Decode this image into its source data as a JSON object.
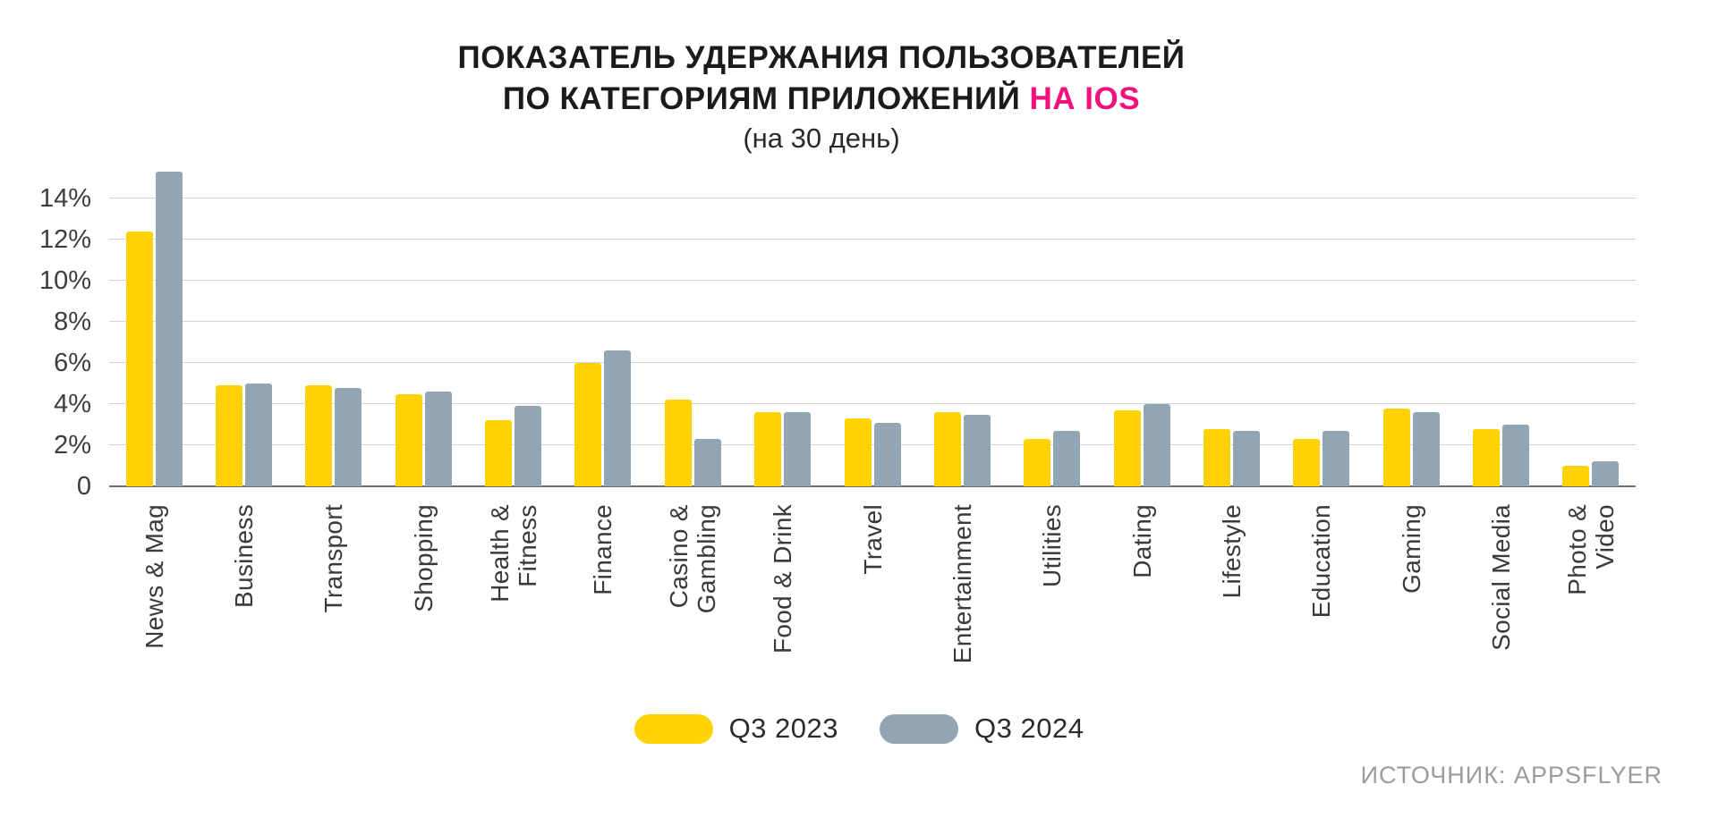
{
  "title": {
    "line1": "ПОКАЗАТЕЛЬ УДЕРЖАНИЯ ПОЛЬЗОВАТЕЛЕЙ",
    "line2_prefix": "ПО КАТЕГОРИЯМ ПРИЛОЖЕНИЙ ",
    "line2_highlight": "НА IOS",
    "subtitle": "(на 30 день)"
  },
  "colors": {
    "highlight": "#F4117B",
    "q3_2023": "#FFD303",
    "q3_2024": "#92A5B2",
    "gridline": "#C9D6E0",
    "baseline": "#6F6F6F"
  },
  "legend": [
    {
      "label": "Q3 2023",
      "color": "#FFD303"
    },
    {
      "label": "Q3 2024",
      "color": "#92A5B2"
    }
  ],
  "source": "ИСТОЧНИК: APPSFLYER",
  "chart_data": {
    "type": "bar",
    "title": "ПОКАЗАТЕЛЬ УДЕРЖАНИЯ ПОЛЬЗОВАТЕЛЕЙ ПО КАТЕГОРИЯМ ПРИЛОЖЕНИЙ НА IOS (на 30 день)",
    "categories": [
      [
        "News & Mag"
      ],
      [
        "Business"
      ],
      [
        "Transport"
      ],
      [
        "Shopping"
      ],
      [
        "Health &",
        "Fitness"
      ],
      [
        "Finance"
      ],
      [
        "Casino &",
        "Gambling"
      ],
      [
        "Food & Drink"
      ],
      [
        "Travel"
      ],
      [
        "Entertainment"
      ],
      [
        "Utilities"
      ],
      [
        "Dating"
      ],
      [
        "Lifestyle"
      ],
      [
        "Education"
      ],
      [
        "Gaming"
      ],
      [
        "Social Media"
      ],
      [
        "Photo &",
        "Video"
      ]
    ],
    "series": [
      {
        "name": "Q3 2023",
        "color": "#FFD303",
        "values": [
          12.4,
          4.9,
          4.9,
          4.5,
          3.2,
          6.0,
          4.2,
          3.6,
          3.3,
          3.6,
          2.3,
          3.7,
          2.8,
          2.3,
          3.8,
          2.8,
          1.0
        ]
      },
      {
        "name": "Q3 2024",
        "color": "#92A5B2",
        "values": [
          15.3,
          5.0,
          4.8,
          4.6,
          3.9,
          6.6,
          2.3,
          3.6,
          3.1,
          3.5,
          2.7,
          4.0,
          2.7,
          2.7,
          3.6,
          3.0,
          1.2
        ]
      }
    ],
    "ylabel": "",
    "xlabel": "",
    "ylim": [
      0,
      16
    ],
    "yticks": [
      {
        "value": 0,
        "label": "0"
      },
      {
        "value": 2,
        "label": "2%"
      },
      {
        "value": 4,
        "label": "4%"
      },
      {
        "value": 6,
        "label": "6%"
      },
      {
        "value": 8,
        "label": "8%"
      },
      {
        "value": 10,
        "label": "10%"
      },
      {
        "value": 12,
        "label": "12%"
      },
      {
        "value": 14,
        "label": "14%"
      }
    ],
    "gridline_values": [
      2,
      4,
      6,
      8,
      10,
      12,
      14
    ],
    "grid": true,
    "legend_position": "bottom"
  }
}
